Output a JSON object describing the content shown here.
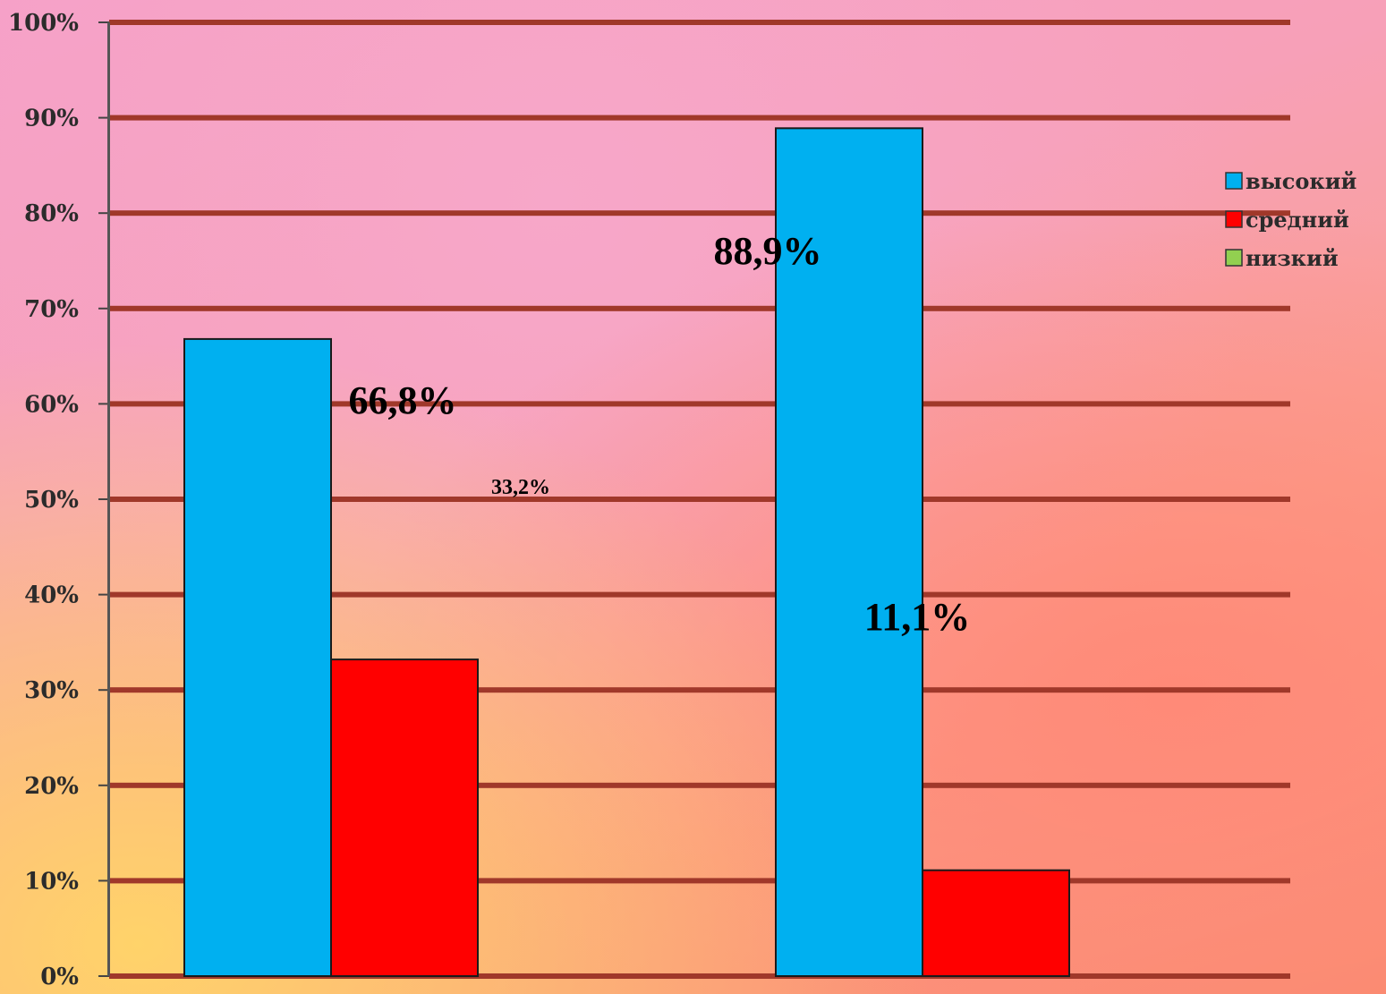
{
  "chart_data": {
    "type": "bar",
    "categories": [
      "",
      ""
    ],
    "series": [
      {
        "name": "высокий",
        "color": "#00b0f0",
        "values": [
          66.8,
          88.9
        ]
      },
      {
        "name": "средний",
        "color": "#ff0000",
        "values": [
          33.2,
          11.1
        ]
      },
      {
        "name": "низкий",
        "color": "#92d050",
        "values": [
          0,
          0
        ]
      }
    ],
    "data_labels": [
      "66,8%",
      "88,9%",
      "33,2%",
      "11,1%"
    ],
    "y_ticks": [
      "0%",
      "10%",
      "20%",
      "30%",
      "40%",
      "50%",
      "60%",
      "70%",
      "80%",
      "90%",
      "100%"
    ],
    "ylim": [
      0,
      100
    ],
    "grid": true,
    "gridline_color": "#a0382a",
    "legend_position": "right",
    "title": "",
    "xlabel": "",
    "ylabel": ""
  }
}
